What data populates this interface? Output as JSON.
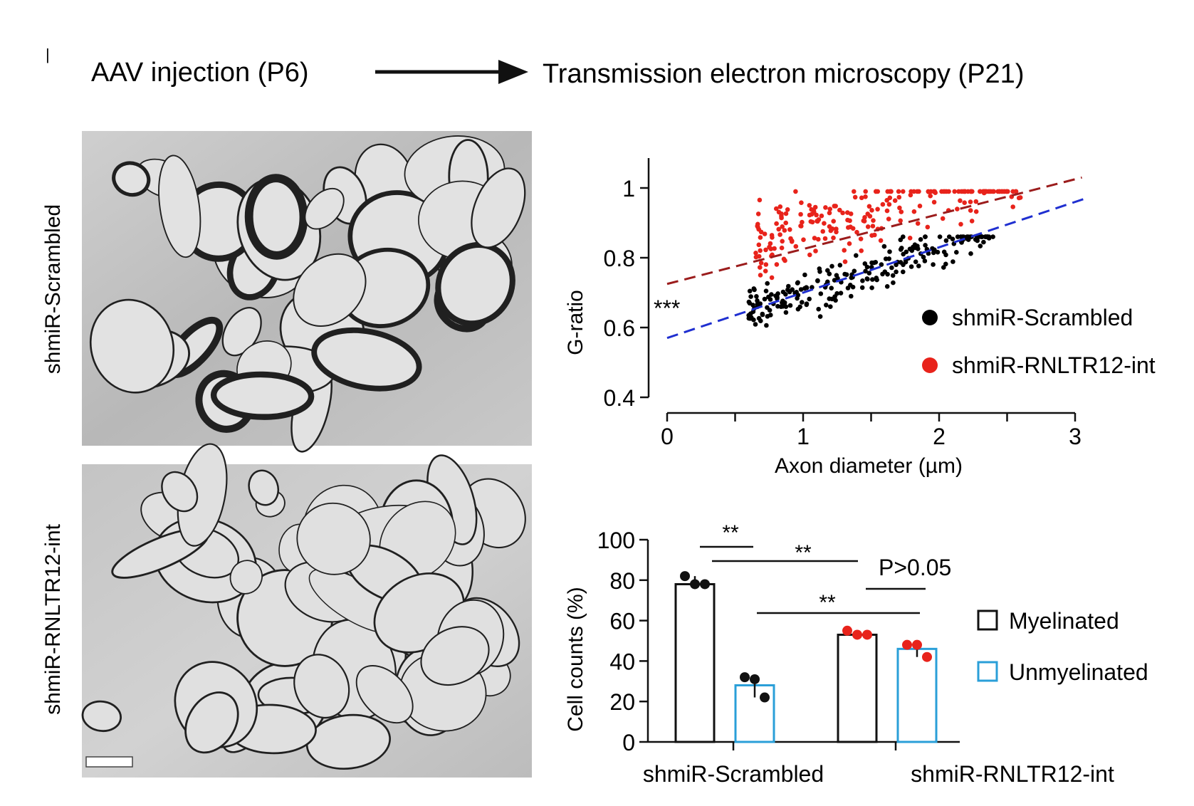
{
  "panel_letter": "|",
  "header": {
    "left": "AAV injection (P6)",
    "right": "Transmission electron microscopy (P21)"
  },
  "micrographs": {
    "top_label": "shmiR-Scrambled",
    "bottom_label": "shmiR-RNLTR12-int"
  },
  "colors": {
    "scrambled": "#000000",
    "rnltr": "#e8231b",
    "fit_scrambled": "#1f2fd0",
    "fit_rnltr": "#9b1c1c",
    "unmyelinated": "#2a9fd8"
  },
  "chart_data": [
    {
      "type": "scatter",
      "xlabel": "Axon diameter (µm)",
      "ylabel": "G-ratio",
      "xlim": [
        0,
        3
      ],
      "ylim": [
        0.4,
        1.0
      ],
      "xticks": [
        "0",
        "1",
        "2",
        "3"
      ],
      "yticks": [
        "0.4",
        "0.6",
        "0.8",
        "1"
      ],
      "significance": "***",
      "series": [
        {
          "name": "shmiR-Scrambled",
          "fit": {
            "intercept": 0.57,
            "slope": 0.13
          }
        },
        {
          "name": "shmiR-RNLTR12-int",
          "fit": {
            "intercept": 0.725,
            "slope": 0.1
          }
        }
      ],
      "legend": "right"
    },
    {
      "type": "bar",
      "ylabel": "Cell counts (%)",
      "ylim": [
        0,
        100
      ],
      "yticks": [
        "0",
        "20",
        "40",
        "60",
        "80",
        "100"
      ],
      "categories": [
        "shmiR-Scrambled",
        "shmiR-RNLTR12-int"
      ],
      "series": [
        {
          "name": "Myelinated",
          "values": [
            78,
            53
          ],
          "points": [
            [
              82,
              78,
              78
            ],
            [
              55,
              53,
              53
            ]
          ]
        },
        {
          "name": "Unmyelinated",
          "values": [
            28,
            46
          ],
          "points": [
            [
              32,
              31,
              22
            ],
            [
              48,
              48,
              42
            ]
          ]
        }
      ],
      "annotations": [
        "**",
        "**",
        "P>0.05",
        "**"
      ],
      "legend": "right"
    }
  ]
}
